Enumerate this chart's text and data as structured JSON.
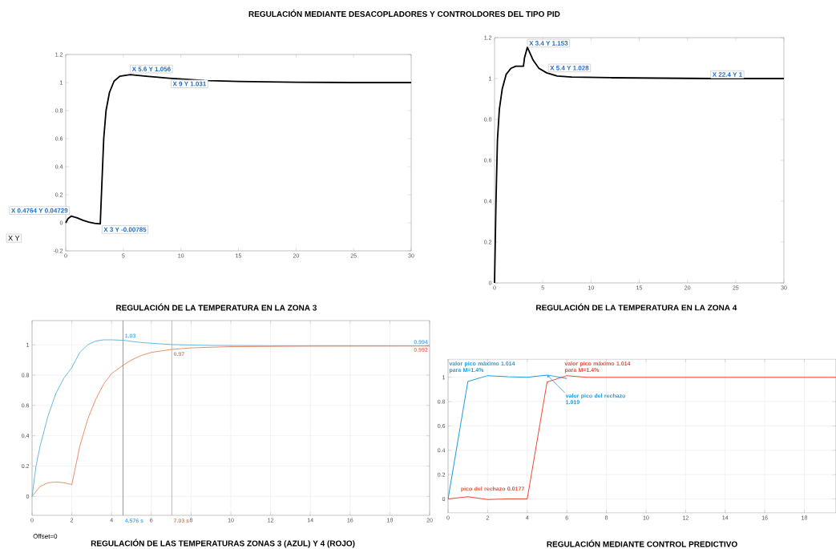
{
  "chart_data": [
    {
      "type": "line",
      "title": "REGULACIÓN MEDIANTE DESACOPLADORES Y CONTROLDORES DEL TIPO PID",
      "subtitle": "REGULACIÓN DE LA TEMPERATURA EN LA ZONA 3",
      "xlim": [
        0,
        30
      ],
      "ylim": [
        -0.2,
        1.2
      ],
      "xticks": [
        0,
        5,
        10,
        15,
        20,
        25,
        30
      ],
      "yticks": [
        -0.2,
        0,
        0.2,
        0.4,
        0.6,
        0.8,
        1,
        1.2
      ],
      "series": [
        {
          "color": "#000000",
          "x": [
            0,
            0.2,
            0.4764,
            1,
            1.5,
            2,
            2.5,
            3,
            3.1,
            3.3,
            3.5,
            3.8,
            4.2,
            4.7,
            5.6,
            7,
            9,
            12,
            15,
            20,
            25,
            30
          ],
          "values": [
            0,
            0.03,
            0.04729,
            0.035,
            0.018,
            0.005,
            -0.004,
            -0.00785,
            0.2,
            0.6,
            0.8,
            0.93,
            1.01,
            1.045,
            1.056,
            1.045,
            1.031,
            1.015,
            1.008,
            1.002,
            1.0,
            1.0
          ]
        }
      ],
      "annotations": [
        {
          "text": "X 0.4764 Y 0.04729",
          "x": 0.4764,
          "y": 0.04729
        },
        {
          "text": "X 3 Y -0.00785",
          "x": 3,
          "y": -0.00785
        },
        {
          "text": "X 5.6 Y 1.056",
          "x": 5.6,
          "y": 1.056
        },
        {
          "text": "X 9 Y 1.031",
          "x": 9,
          "y": 1.031
        },
        "X Y"
      ]
    },
    {
      "type": "line",
      "title": "REGULACIÓN DE LA TEMPERATURA EN LA ZONA 4",
      "xlim": [
        0,
        30
      ],
      "ylim": [
        0,
        1.2
      ],
      "xticks": [
        0,
        5,
        10,
        15,
        20,
        25,
        30
      ],
      "yticks": [
        0,
        0.2,
        0.4,
        0.6,
        0.8,
        1,
        1.2
      ],
      "series": [
        {
          "color": "#000000",
          "x": [
            0,
            0.15,
            0.3,
            0.5,
            0.8,
            1.2,
            1.7,
            2.2,
            3,
            3.1,
            3.4,
            4,
            4.6,
            5.4,
            6.5,
            8,
            12,
            22.4,
            30
          ],
          "values": [
            0,
            0.4,
            0.7,
            0.85,
            0.95,
            1.02,
            1.05,
            1.06,
            1.06,
            1.1,
            1.153,
            1.09,
            1.05,
            1.028,
            1.012,
            1.007,
            1.004,
            1,
            1
          ]
        }
      ],
      "annotations": [
        {
          "text": "X 3.4 Y 1.153",
          "x": 3.4,
          "y": 1.153
        },
        {
          "text": "X 5.4 Y 1.028",
          "x": 5.4,
          "y": 1.028
        },
        {
          "text": "X 22.4 Y 1",
          "x": 22.4,
          "y": 1
        }
      ]
    },
    {
      "type": "line",
      "title": "REGULACIÓN DE LAS TEMPERATURAS ZONAS 3 (AZUL) Y 4 (ROJO)",
      "grid": true,
      "xlim": [
        0,
        20
      ],
      "ylim": [
        -0.125,
        1.16
      ],
      "xticks": [
        0,
        2,
        4,
        6,
        8,
        10,
        12,
        14,
        16,
        18,
        20
      ],
      "yticks": [
        0,
        0.2,
        0.4,
        0.6,
        0.8,
        1
      ],
      "series": [
        {
          "color": "#5aaee0",
          "x": [
            0,
            0.2,
            0.4,
            0.8,
            1.2,
            1.6,
            2,
            2.4,
            2.8,
            3.2,
            3.6,
            4,
            4.576,
            5.5,
            7,
            9,
            12,
            20
          ],
          "values": [
            0,
            0.2,
            0.33,
            0.53,
            0.68,
            0.78,
            0.85,
            0.95,
            1.0,
            1.025,
            1.033,
            1.033,
            1.03,
            1.015,
            1.002,
            0.996,
            0.994,
            0.994
          ]
        },
        {
          "color": "#e8825a",
          "x": [
            0,
            0.4,
            0.8,
            1.2,
            1.6,
            2,
            2.4,
            2.8,
            3.2,
            3.6,
            4,
            4.576,
            5,
            5.5,
            6,
            7.03,
            8,
            10,
            14,
            20
          ],
          "values": [
            0,
            0.065,
            0.09,
            0.095,
            0.09,
            0.078,
            0.33,
            0.51,
            0.64,
            0.74,
            0.81,
            0.865,
            0.9,
            0.93,
            0.95,
            0.97,
            0.98,
            0.988,
            0.991,
            0.992
          ]
        }
      ],
      "ref_lines": [
        {
          "axis": "x",
          "value": 4.576,
          "label": "4.576 s",
          "color": "#6e6e6e"
        },
        {
          "axis": "x",
          "value": 7.03,
          "label": "7.03 s",
          "color": "#9a9a9a"
        }
      ],
      "annotations": [
        {
          "text": "1.03",
          "x": 4.576,
          "y": 1.03
        },
        {
          "text": "0.97",
          "x": 7.03,
          "y": 0.97
        },
        {
          "text": "0.994",
          "x": 20,
          "y": 0.994
        },
        {
          "text": "0.992",
          "x": 20,
          "y": 0.992
        },
        "Offset=0"
      ]
    },
    {
      "type": "line",
      "title": "REGULACIÓN MEDIANTE CONTROL PREDICTIVO",
      "grid": true,
      "xlim": [
        0,
        19.6
      ],
      "ylim": [
        -0.115,
        1.15
      ],
      "xticks": [
        0,
        2,
        4,
        6,
        8,
        10,
        12,
        14,
        16,
        18
      ],
      "yticks": [
        0,
        0.2,
        0.4,
        0.6,
        0.8,
        1
      ],
      "series": [
        {
          "color": "#1e9be0",
          "x": [
            0,
            1,
            2,
            3,
            4,
            5,
            6
          ],
          "values": [
            0,
            0.965,
            1.014,
            1.005,
            1.0,
            1.019,
            0.99
          ]
        },
        {
          "color": "#ee4a3a",
          "x": [
            0,
            1,
            2,
            3,
            4,
            5,
            6,
            7,
            19.6
          ],
          "values": [
            0,
            0.0177,
            -0.005,
            0,
            0,
            0.96,
            1.014,
            1.0,
            1.0
          ]
        }
      ],
      "annotations": [
        {
          "text": "valor pico máximo 1.014 para M=1.4%",
          "x": 2,
          "y": 1.014
        },
        {
          "text": "valor pico máximo 1.014 para M=1.4%",
          "x": 6,
          "y": 1.014
        },
        {
          "text": "valor pico del rechazo 1.019",
          "x": 5,
          "y": 1.019
        },
        {
          "text": "pico del rechazo 0.0177",
          "x": 1,
          "y": 0.0177
        }
      ]
    }
  ]
}
